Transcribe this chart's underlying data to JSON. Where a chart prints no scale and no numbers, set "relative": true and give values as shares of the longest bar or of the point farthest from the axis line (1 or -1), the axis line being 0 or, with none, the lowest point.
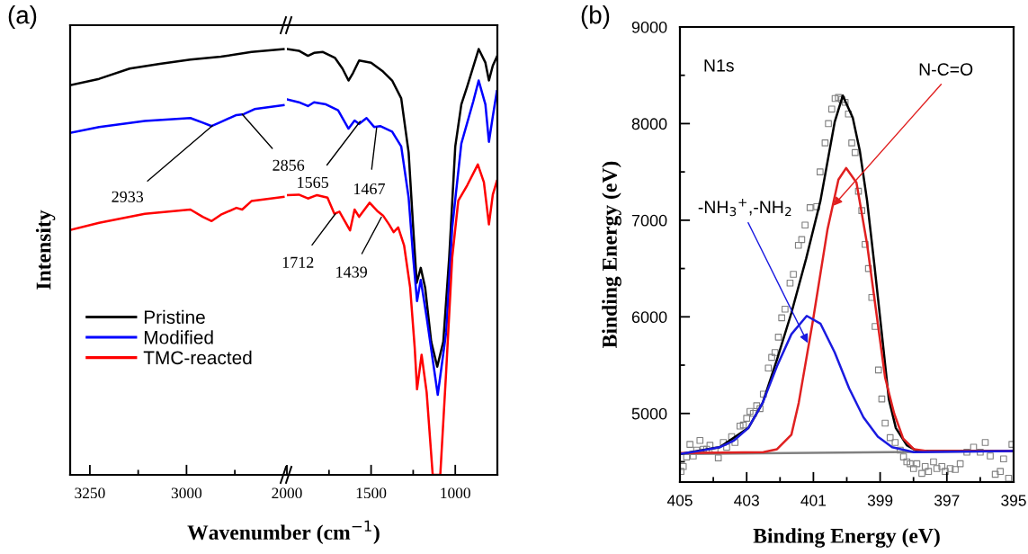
{
  "chart_data": [
    {
      "type": "line",
      "title": "(a)",
      "xlabel": "Wavenumber (cm$^{−1}$)",
      "ylabel": "Intensity",
      "relative": true,
      "tick_labels": "x",
      "legend": "lower left",
      "xlim": [
        3301,
        2745
      ],
      "xticks": [
        3250,
        {
          "value": 3125,
          "label": null
        },
        3000,
        {
          "value": 2875,
          "label": null
        }
      ],
      "series": [
        {
          "name": "Pristine",
          "color": "#000000",
          "x": [
            3301,
            3226,
            3147,
            3069,
            2990,
            2911,
            2832,
            2749
          ],
          "values": [
            0.915,
            0.93,
            0.954,
            0.965,
            0.975,
            0.982,
            0.993,
            1.0
          ]
        },
        {
          "name": "Modified",
          "color": "#0000ff",
          "x": [
            3301,
            3226,
            3108,
            2990,
            2958,
            2935,
            2915,
            2871,
            2852,
            2824,
            2749
          ],
          "values": [
            0.803,
            0.817,
            0.831,
            0.838,
            0.827,
            0.819,
            0.827,
            0.845,
            0.847,
            0.859,
            0.868
          ]
        },
        {
          "name": "TMC-reacted",
          "color": "#ff0000",
          "x": [
            3301,
            3226,
            3108,
            2990,
            2958,
            2935,
            2911,
            2871,
            2856,
            2832,
            2749
          ],
          "values": [
            0.575,
            0.592,
            0.613,
            0.623,
            0.606,
            0.596,
            0.611,
            0.627,
            0.623,
            0.643,
            0.653
          ]
        }
      ],
      "annotations": [
        {
          "text": "2933",
          "x": 2933,
          "y": 0.82
        },
        {
          "text": "2856",
          "x": 2856,
          "y": 0.847
        }
      ]
    },
    {
      "type": "line",
      "relative": true,
      "tick_labels": "x",
      "xlim": [
        2000,
        750
      ],
      "xticks": [
        2000,
        {
          "value": 1750,
          "label": null
        },
        1500,
        {
          "value": 1250,
          "label": null
        },
        1000
      ],
      "series": [
        {
          "color": "#000000",
          "x": [
            2000,
            1929,
            1875,
            1839,
            1786,
            1714,
            1670,
            1634,
            1607,
            1571,
            1500,
            1429,
            1375,
            1321,
            1277,
            1250,
            1229,
            1205,
            1179,
            1143,
            1107,
            1071,
            1036,
            1000,
            964,
            929,
            861,
            821,
            800,
            777,
            753
          ],
          "values": [
            1.0,
            0.996,
            0.984,
            0.991,
            0.993,
            0.979,
            0.954,
            0.926,
            0.944,
            0.973,
            0.968,
            0.947,
            0.926,
            0.884,
            0.757,
            0.581,
            0.451,
            0.486,
            0.44,
            0.313,
            0.254,
            0.313,
            0.511,
            0.771,
            0.87,
            0.912,
            1.0,
            0.968,
            0.926,
            0.961,
            0.982
          ]
        },
        {
          "color": "#0000ff",
          "x": [
            2000,
            1929,
            1875,
            1839,
            1768,
            1696,
            1634,
            1598,
            1571,
            1527,
            1482,
            1446,
            1375,
            1321,
            1277,
            1250,
            1227,
            1205,
            1170,
            1104,
            1054,
            1018,
            964,
            893,
            861,
            821,
            800,
            777,
            753
          ],
          "values": [
            0.882,
            0.875,
            0.866,
            0.875,
            0.87,
            0.856,
            0.813,
            0.832,
            0.824,
            0.838,
            0.817,
            0.819,
            0.806,
            0.771,
            0.651,
            0.511,
            0.408,
            0.458,
            0.37,
            0.188,
            0.335,
            0.581,
            0.778,
            0.877,
            0.926,
            0.87,
            0.782,
            0.842,
            0.901
          ]
        },
        {
          "color": "#ff0000",
          "x": [
            2000,
            1929,
            1875,
            1821,
            1759,
            1718,
            1688,
            1625,
            1598,
            1571,
            1509,
            1464,
            1429,
            1393,
            1366,
            1339,
            1304,
            1268,
            1241,
            1227,
            1200,
            1170,
            1134,
            1089,
            1054,
            1018,
            982,
            929,
            866,
            830,
            800,
            777,
            753
          ],
          "values": [
            0.657,
            0.658,
            0.649,
            0.657,
            0.651,
            0.613,
            0.618,
            0.574,
            0.623,
            0.606,
            0.639,
            0.62,
            0.609,
            0.588,
            0.57,
            0.581,
            0.539,
            0.44,
            0.299,
            0.201,
            0.282,
            0.194,
            0.0,
            0.0,
            0.243,
            0.511,
            0.644,
            0.68,
            0.729,
            0.687,
            0.588,
            0.658,
            0.69
          ]
        }
      ],
      "annotations": [
        {
          "text": "1565",
          "x": 1565,
          "y": 0.83
        },
        {
          "text": "1467",
          "x": 1467,
          "y": 0.815
        },
        {
          "text": "1712",
          "x": 1712,
          "y": 0.613
        },
        {
          "text": "1439",
          "x": 1439,
          "y": 0.605
        }
      ]
    },
    {
      "type": "line",
      "title": "(b)",
      "xlabel": "Binding Energy (eV)",
      "ylabel": "Binding Energy (eV)",
      "xlim": [
        405,
        395
      ],
      "xticks": [
        405,
        {
          "value": 404,
          "label": null
        },
        403,
        {
          "value": 402,
          "label": null
        },
        401,
        {
          "value": 400,
          "label": null
        },
        399,
        {
          "value": 398,
          "label": null
        },
        397,
        {
          "value": 396,
          "label": null
        },
        395
      ],
      "ylim": [
        4290,
        9000
      ],
      "yticks": [
        {
          "value": 4500,
          "label": null
        },
        5000,
        {
          "value": 5500,
          "label": null
        },
        6000,
        {
          "value": 6500,
          "label": null
        },
        7000,
        {
          "value": 7500,
          "label": null
        },
        8000,
        {
          "value": 8500,
          "label": null
        },
        9000
      ],
      "series": [
        {
          "type": "scatter",
          "marker": "square",
          "color": "#808080",
          "x": [
            404.97,
            404.9,
            404.8,
            404.7,
            404.6,
            404.5,
            404.4,
            404.3,
            404.2,
            404.1,
            403.95,
            403.85,
            403.7,
            403.6,
            403.45,
            403.35,
            403.2,
            403.1,
            403.0,
            402.9,
            402.8,
            402.7,
            402.6,
            402.5,
            402.35,
            402.25,
            402.15,
            402.05,
            401.95,
            401.85,
            401.7,
            401.6,
            401.45,
            401.35,
            401.25,
            401.1,
            400.9,
            400.8,
            400.65,
            400.55,
            400.45,
            400.35,
            400.25,
            400.15,
            400.05,
            399.95,
            399.85,
            399.75,
            399.65,
            399.55,
            399.45,
            399.35,
            399.25,
            399.15,
            399.05,
            398.95,
            398.85,
            398.7,
            398.55,
            398.4,
            398.3,
            398.2,
            398.1,
            398.0,
            397.9,
            397.75,
            397.65,
            397.55,
            397.4,
            397.3,
            397.15,
            397.05,
            396.9,
            396.75,
            396.6,
            396.4,
            396.2,
            396.0,
            395.85,
            395.7,
            395.55,
            395.4,
            395.3,
            395.15,
            395.05
          ],
          "values": [
            4400,
            4450,
            4550,
            4680,
            4560,
            4620,
            4720,
            4630,
            4630,
            4670,
            4620,
            4540,
            4700,
            4650,
            4760,
            4700,
            4870,
            4880,
            4950,
            5020,
            5000,
            5080,
            5050,
            5200,
            5470,
            5580,
            5630,
            5790,
            5990,
            6080,
            6350,
            6440,
            6740,
            6800,
            6950,
            7130,
            7140,
            7500,
            7800,
            8000,
            8150,
            8260,
            8270,
            8250,
            8220,
            8100,
            7800,
            7700,
            7300,
            7100,
            6750,
            6500,
            6200,
            5900,
            5450,
            5150,
            4900,
            4750,
            4700,
            4620,
            4550,
            4500,
            4480,
            4430,
            4480,
            4380,
            4450,
            4400,
            4500,
            4430,
            4450,
            4400,
            4430,
            4420,
            4480,
            4600,
            4650,
            4600,
            4700,
            4560,
            4370,
            4400,
            4530,
            4330,
            4680
          ]
        },
        {
          "color": "#808080",
          "x": [
            405,
            395
          ],
          "values": [
            4580,
            4610
          ]
        },
        {
          "color": "#000000",
          "x": [
            405,
            403.81,
            402.95,
            402.52,
            402.09,
            401.66,
            401.22,
            400.79,
            400.36,
            400.12,
            399.82,
            399.61,
            399.39,
            399.17,
            398.96,
            398.74,
            398.53,
            398.2,
            397.88,
            395
          ],
          "values": [
            4580,
            4650,
            4850,
            5110,
            5560,
            6040,
            6600,
            7200,
            8020,
            8290,
            8060,
            7720,
            7200,
            6530,
            5860,
            5150,
            4850,
            4670,
            4610,
            4610
          ]
        },
        {
          "color": "#e02020",
          "x": [
            405,
            402.5,
            402.09,
            401.66,
            401.44,
            401.01,
            400.58,
            400.25,
            400.02,
            399.71,
            399.39,
            399.07,
            398.85,
            398.58,
            398.31,
            397.99,
            397.56,
            395
          ],
          "values": [
            4590,
            4600,
            4630,
            4780,
            5110,
            5970,
            6900,
            7420,
            7540,
            7390,
            6750,
            5930,
            5370,
            5000,
            4740,
            4630,
            4610,
            4610
          ]
        },
        {
          "color": "#1a1ae0",
          "x": [
            405,
            404.46,
            403.81,
            403.38,
            402.95,
            402.52,
            402.09,
            401.66,
            401.2,
            400.79,
            400.36,
            399.93,
            399.5,
            399.07,
            398.64,
            397.99,
            395
          ],
          "values": [
            4580,
            4610,
            4650,
            4720,
            4850,
            5110,
            5490,
            5820,
            6010,
            5930,
            5630,
            5260,
            4960,
            4760,
            4650,
            4600,
            4610
          ]
        }
      ],
      "annotations": [
        "N1s",
        {
          "text": "N-C=O",
          "x": 400.4,
          "y": 7150
        },
        {
          "text": "-NH$_{3}$$^{+}$,-NH$_{2}$",
          "x": 401.17,
          "y": 5730
        }
      ]
    }
  ]
}
